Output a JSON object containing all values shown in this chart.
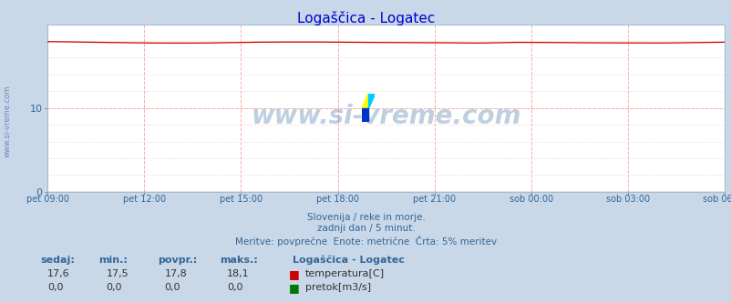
{
  "title": "Logaščica - Logatec",
  "title_color": "#0000cc",
  "outer_bg_color": "#c8d8e8",
  "plot_bg_color": "#ffffff",
  "grid_color": "#ffaaaa",
  "y_min": 0,
  "y_max": 20,
  "y_ticks": [
    0,
    10
  ],
  "x_labels": [
    "pet 09:00",
    "pet 12:00",
    "pet 15:00",
    "pet 18:00",
    "pet 21:00",
    "sob 00:00",
    "sob 03:00",
    "sob 06:00"
  ],
  "x_positions": [
    0,
    36,
    72,
    108,
    144,
    180,
    216,
    252
  ],
  "n_points": 289,
  "temp_mean": 17.8,
  "temp_min": 17.5,
  "temp_max": 18.1,
  "flow_value": 0.0,
  "temp_color": "#cc0000",
  "flow_color": "#007700",
  "watermark_color": "#4477aa",
  "watermark_text": "www.si-vreme.com",
  "watermark_alpha": 0.35,
  "sub_line1": "Slovenija / reke in morje.",
  "sub_line2": "zadnji dan / 5 minut.",
  "sub_line3": "Meritve: povprečne  Enote: metrične  Črta: 5% meritev",
  "sub_color": "#336699",
  "label_color": "#336699",
  "tick_color": "#336699",
  "legend_station": "Logaščica - Logatec",
  "legend_temp_label": "temperatura[C]",
  "legend_flow_label": "pretok[m3/s]",
  "stat_headers": [
    "sedaj:",
    "min.:",
    "povpr.:",
    "maks.:"
  ],
  "stat_temp": [
    "17,6",
    "17,5",
    "17,8",
    "18,1"
  ],
  "stat_flow": [
    "0,0",
    "0,0",
    "0,0",
    "0,0"
  ],
  "logo_yellow": "#ffff00",
  "logo_cyan": "#00ccff",
  "logo_blue": "#0033cc",
  "arrow_color": "#cc0000",
  "watermark_left": "www.si-vreme.com"
}
